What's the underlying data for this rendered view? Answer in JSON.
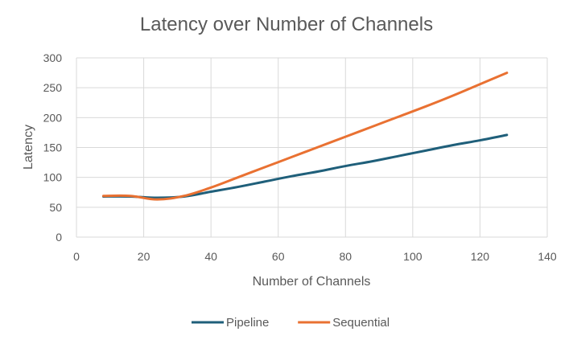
{
  "chart_data": {
    "type": "line",
    "title": "Latency over Number of Channels",
    "xlabel": "Number of Channels",
    "ylabel": "Latency",
    "xlim": [
      0,
      140
    ],
    "ylim": [
      0,
      300
    ],
    "xticks": [
      0,
      20,
      40,
      60,
      80,
      100,
      120,
      140
    ],
    "yticks": [
      0,
      50,
      100,
      150,
      200,
      250,
      300
    ],
    "grid": true,
    "legend_position": "bottom",
    "x": [
      8,
      16,
      24,
      32,
      40,
      48,
      56,
      64,
      72,
      80,
      88,
      96,
      104,
      112,
      120,
      128
    ],
    "series": [
      {
        "name": "Pipeline",
        "color": "#1f5f7a",
        "values": [
          68,
          68,
          66,
          68,
          76,
          84,
          93,
          102,
          110,
          119,
          127,
          136,
          145,
          154,
          162,
          171
        ]
      },
      {
        "name": "Sequential",
        "color": "#e97132",
        "values": [
          69,
          69,
          63,
          69,
          83,
          100,
          117,
          134,
          151,
          168,
          185,
          202,
          219,
          237,
          256,
          275
        ]
      }
    ]
  }
}
